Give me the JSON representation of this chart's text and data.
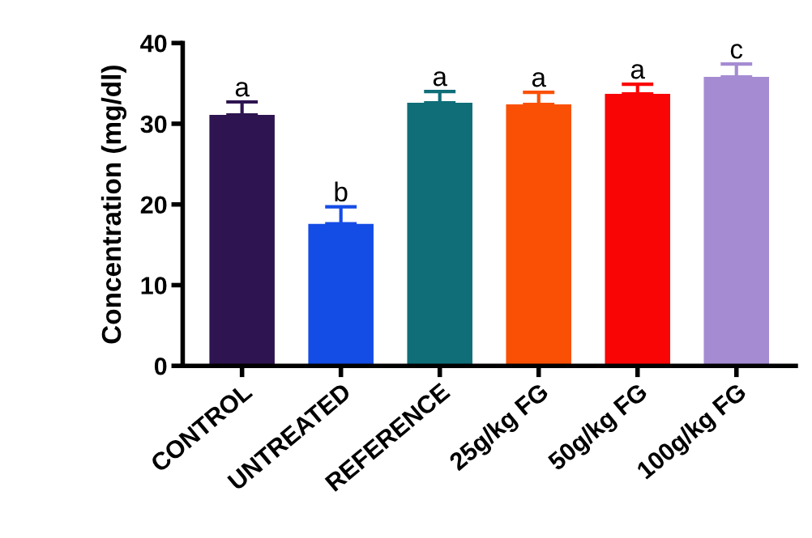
{
  "chart_data": {
    "type": "bar",
    "ylabel": "Concentration (mg/dl)",
    "categories": [
      "CONTROL",
      "UNTREATED",
      "REFERENCE",
      "25g/kg FG",
      "50g/kg FG",
      "100g/kg FG"
    ],
    "values": [
      31.1,
      17.6,
      32.6,
      32.4,
      33.7,
      35.8
    ],
    "colors": [
      "#2e1450",
      "#144ce6",
      "#0f6e78",
      "#fa5005",
      "#fa0505",
      "#a58cd2"
    ],
    "errors": [
      [
        31.1,
        32.7
      ],
      [
        17.6,
        19.7
      ],
      [
        32.6,
        34.0
      ],
      [
        32.4,
        33.9
      ],
      [
        33.7,
        34.9
      ],
      [
        35.8,
        37.4
      ]
    ],
    "ylim": [
      0,
      40
    ],
    "yticks": [
      0,
      10,
      20,
      30,
      40
    ],
    "grid": false,
    "legend": false,
    "annotations": [
      {
        "text": "a",
        "x": "CONTROL",
        "y": 32.7
      },
      {
        "text": "b",
        "x": "UNTREATED",
        "y": 19.7
      },
      {
        "text": "a",
        "x": "REFERENCE",
        "y": 34.0
      },
      {
        "text": "a",
        "x": "25g/kg FG",
        "y": 33.9
      },
      {
        "text": "a",
        "x": "50g/kg FG",
        "y": 34.9
      },
      {
        "text": "c",
        "x": "100g/kg FG",
        "y": 37.4
      }
    ]
  }
}
